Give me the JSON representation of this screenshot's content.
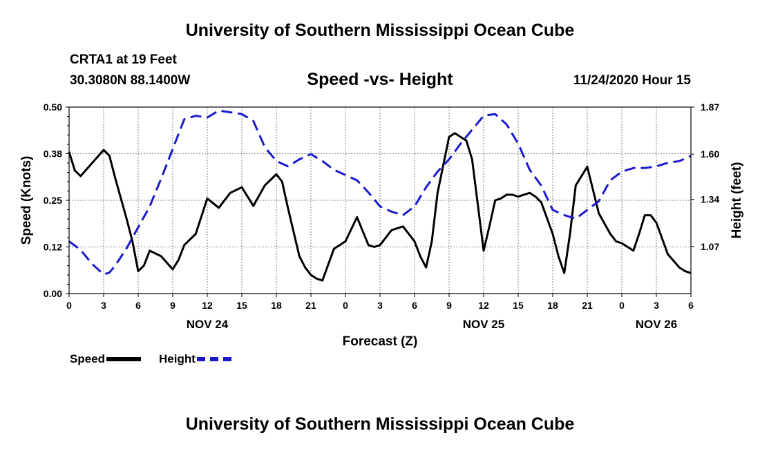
{
  "header": {
    "title_top": "University of Southern Mississippi Ocean Cube",
    "station": "CRTA1 at 19 Feet",
    "coords": "30.3080N 88.1400W",
    "chart_title": "Speed -vs- Height",
    "run_time": "11/24/2020 Hour 15",
    "title_bottom": "University of Southern Mississippi Ocean Cube"
  },
  "legend": {
    "speed_label": "Speed",
    "height_label": "Height"
  },
  "colors": {
    "speed": "#000000",
    "height": "#1a1acc",
    "grid": "#808080"
  },
  "chart_data": {
    "type": "line",
    "title": "Speed -vs- Height",
    "xlabel": "Forecast (Z)",
    "ylabel": "Speed (Knots)",
    "y2label": "Height (feet)",
    "xlim": [
      0,
      54
    ],
    "ylim": [
      0,
      0.5
    ],
    "y2lim": [
      0.8,
      1.87
    ],
    "yticks": [
      "0.00",
      "0.12",
      "0.25",
      "0.38",
      "0.50"
    ],
    "ytick_values": [
      0,
      0.125,
      0.25,
      0.375,
      0.5
    ],
    "y2ticks": [
      "1.07",
      "1.34",
      "1.60",
      "1.87"
    ],
    "y2tick_values": [
      1.07,
      1.34,
      1.6,
      1.87
    ],
    "xtick_values": [
      0,
      3,
      6,
      9,
      12,
      15,
      18,
      21,
      24,
      27,
      30,
      33,
      36,
      39,
      42,
      45,
      48,
      51,
      54
    ],
    "xtick_labels": [
      "0",
      "3",
      "6",
      "9",
      "12",
      "15",
      "18",
      "21",
      "0",
      "3",
      "6",
      "9",
      "12",
      "15",
      "18",
      "21",
      "0",
      "3",
      "6"
    ],
    "date_labels": [
      {
        "x": 12,
        "label": "NOV 24"
      },
      {
        "x": 36,
        "label": "NOV 25"
      },
      {
        "x": 51,
        "label": "NOV 26"
      }
    ],
    "series": [
      {
        "name": "Speed",
        "axis": "left",
        "style": "solid",
        "x": [
          0,
          0.5,
          1,
          2,
          3,
          3.5,
          4,
          5,
          5.5,
          6,
          6.5,
          7,
          8,
          9,
          9.5,
          10,
          11,
          12,
          13,
          14,
          15,
          16,
          17,
          18,
          18.5,
          19,
          20,
          20.5,
          21,
          21.5,
          22,
          23,
          24,
          25,
          26,
          26.5,
          27,
          28,
          29,
          30,
          30.5,
          31,
          31.5,
          32,
          33,
          33.5,
          34,
          34.5,
          35,
          36,
          36.5,
          37,
          37.5,
          38,
          38.5,
          39,
          40,
          40.5,
          41,
          42,
          42.5,
          43,
          43.5,
          44,
          45,
          46,
          47,
          47.5,
          48,
          49,
          49.5,
          50,
          50.5,
          51,
          52,
          53,
          53.5,
          54
        ],
        "values": [
          0.38,
          0.33,
          0.315,
          0.35,
          0.385,
          0.37,
          0.31,
          0.2,
          0.14,
          0.06,
          0.075,
          0.115,
          0.1,
          0.065,
          0.09,
          0.13,
          0.16,
          0.255,
          0.23,
          0.27,
          0.285,
          0.235,
          0.29,
          0.32,
          0.3,
          0.23,
          0.1,
          0.07,
          0.05,
          0.04,
          0.035,
          0.12,
          0.14,
          0.205,
          0.13,
          0.125,
          0.13,
          0.17,
          0.18,
          0.14,
          0.1,
          0.07,
          0.14,
          0.27,
          0.42,
          0.43,
          0.42,
          0.41,
          0.36,
          0.115,
          0.18,
          0.25,
          0.255,
          0.265,
          0.265,
          0.26,
          0.27,
          0.26,
          0.245,
          0.16,
          0.1,
          0.055,
          0.16,
          0.29,
          0.34,
          0.215,
          0.16,
          0.14,
          0.135,
          0.115,
          0.16,
          0.21,
          0.21,
          0.19,
          0.105,
          0.07,
          0.06,
          0.055
        ]
      },
      {
        "name": "Height",
        "axis": "right",
        "style": "dashed",
        "x": [
          0,
          1,
          2,
          3,
          3.5,
          4,
          5,
          6,
          7,
          8,
          9,
          10,
          11,
          12,
          13,
          14,
          15,
          16,
          17,
          18,
          19,
          20,
          21,
          22,
          23,
          24,
          25,
          26,
          27,
          28,
          29,
          30,
          31,
          32,
          33,
          34,
          35,
          36,
          37,
          38,
          39,
          40,
          41,
          42,
          43,
          44,
          45,
          46,
          47,
          48,
          49,
          50,
          51,
          52,
          53,
          54
        ],
        "values": [
          1.1,
          1.05,
          0.97,
          0.91,
          0.92,
          0.96,
          1.06,
          1.18,
          1.3,
          1.46,
          1.63,
          1.8,
          1.82,
          1.81,
          1.85,
          1.84,
          1.83,
          1.79,
          1.64,
          1.56,
          1.53,
          1.57,
          1.6,
          1.56,
          1.51,
          1.48,
          1.45,
          1.38,
          1.3,
          1.27,
          1.25,
          1.3,
          1.41,
          1.5,
          1.57,
          1.66,
          1.74,
          1.82,
          1.83,
          1.77,
          1.66,
          1.51,
          1.42,
          1.28,
          1.25,
          1.23,
          1.28,
          1.33,
          1.45,
          1.5,
          1.52,
          1.52,
          1.53,
          1.55,
          1.56,
          1.59
        ]
      }
    ]
  }
}
